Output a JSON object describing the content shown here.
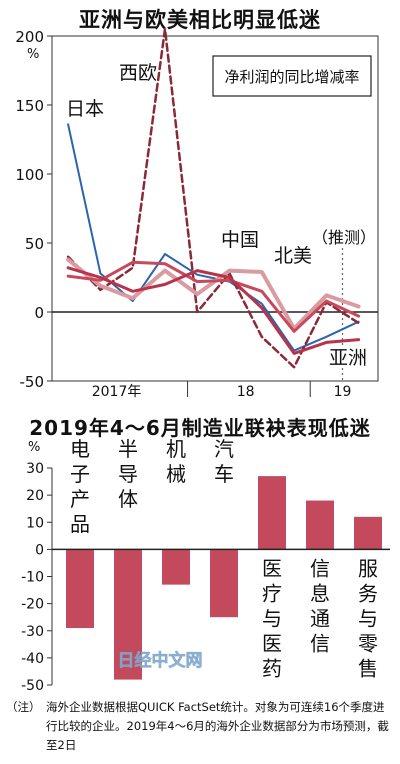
{
  "chart_data": [
    {
      "type": "line",
      "title": "亚洲与欧美相比明显低迷",
      "annotation_box": "净利润的同比增减率",
      "estimate_label": "（推测）",
      "y_unit": "%",
      "ylim": [
        -50,
        200
      ],
      "yticks": [
        -50,
        0,
        50,
        100,
        150,
        200
      ],
      "ytick_labels": [
        "-50",
        "0",
        "50",
        "100",
        "150",
        "200"
      ],
      "x": [
        1,
        2,
        3,
        4,
        5,
        6,
        7,
        8,
        9,
        10
      ],
      "xlim": [
        0.5,
        10.6
      ],
      "x_group_labels": [
        {
          "label": "2017年",
          "at": 2.5
        },
        {
          "label": "18",
          "at": 6.5
        },
        {
          "label": "19",
          "at": 9.5
        }
      ],
      "x_group_dividers": [
        4.7,
        8.5
      ],
      "estimate_from_x": 9.5,
      "series": [
        {
          "name": "日本",
          "color": "#2a66ae",
          "dash": false,
          "width": 2,
          "values": [
            136,
            28,
            8,
            42,
            27,
            22,
            6,
            -28,
            -18,
            -7
          ]
        },
        {
          "name": "西欧",
          "color": "#8a2a38",
          "dash": true,
          "width": 2.5,
          "values": [
            40,
            16,
            32,
            205,
            0,
            28,
            -18,
            -40,
            7,
            -8
          ]
        },
        {
          "name": "中国",
          "color": "#d99aa0",
          "dash": false,
          "width": 4,
          "values": [
            38,
            19,
            10,
            30,
            13,
            30,
            29,
            -12,
            12,
            4
          ]
        },
        {
          "name": "北美",
          "color": "#c8485c",
          "dash": false,
          "width": 3,
          "values": [
            26,
            23,
            36,
            35,
            22,
            23,
            15,
            -14,
            8,
            -3
          ]
        },
        {
          "name": "亚洲",
          "color": "#b8344a",
          "dash": false,
          "width": 3,
          "values": [
            32,
            25,
            15,
            20,
            30,
            25,
            3,
            -30,
            -22,
            -20
          ]
        }
      ]
    },
    {
      "type": "bar",
      "title": "2019年4～6月制造业联袂表现低迷",
      "y_unit": "%",
      "ylim": [
        -50,
        30
      ],
      "yticks": [
        30,
        20,
        10,
        0,
        -10,
        -20,
        -30,
        -40,
        -50
      ],
      "ytick_labels": [
        "30",
        "20",
        "10",
        "0",
        "-10",
        "-20",
        "-30",
        "-40",
        "-50"
      ],
      "categories": [
        "电子产品",
        "半导体",
        "机械",
        "汽车",
        "医疗与医药",
        "信息通信",
        "服务与零售"
      ],
      "values": [
        -29,
        -48,
        -13,
        -25,
        27,
        18,
        12
      ],
      "bar_color": "#c24a5c"
    }
  ],
  "watermark": "日经中文网",
  "footnote": {
    "tag": "（注）",
    "text": "海外企业数据根据QUICK FactSet统计。对象为可连续16个季度进行比较的企业。2019年4～6月的海外企业数据部分为市场预测，截至2日"
  }
}
